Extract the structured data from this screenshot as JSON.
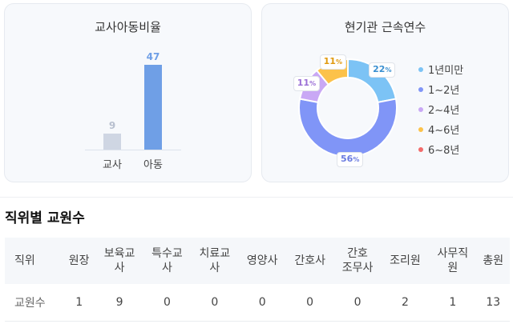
{
  "turnover_card": {
    "title": "교사아동비율",
    "chart_data": {
      "type": "bar",
      "categories": [
        "교사",
        "아동"
      ],
      "values": [
        9,
        47
      ],
      "colors": [
        "#cfd6e3",
        "#6f9fe6"
      ],
      "value_colors": [
        "#b8c0cf",
        "#6f9fe6"
      ],
      "ylim": [
        0,
        47
      ]
    }
  },
  "tenure_card": {
    "title": "현기관 근속연수",
    "chart_data": {
      "type": "pie",
      "categories": [
        "1년미만",
        "1~2년",
        "2~4년",
        "4~6년",
        "6~8년"
      ],
      "values": [
        22,
        56,
        11,
        11,
        0
      ],
      "colors": [
        "#7cc3f5",
        "#8095f7",
        "#c9a8f5",
        "#fcc24a",
        "#f26b6b"
      ],
      "label_colors": [
        "#3a8fd0",
        "#6a7be0",
        "#9b6fd6",
        "#e09a10",
        "#e05050"
      ],
      "unit": "%"
    }
  },
  "staff_section": {
    "title": "직위별 교원수",
    "columns": [
      "직위",
      "원장",
      "보육교\n사",
      "특수교\n사",
      "치료교\n사",
      "영양사",
      "간호사",
      "간호\n조무사",
      "조리원",
      "사무직\n원",
      "총원"
    ],
    "row_label": "교원수",
    "values": [
      "1",
      "9",
      "0",
      "0",
      "0",
      "0",
      "0",
      "2",
      "1",
      "13"
    ]
  }
}
